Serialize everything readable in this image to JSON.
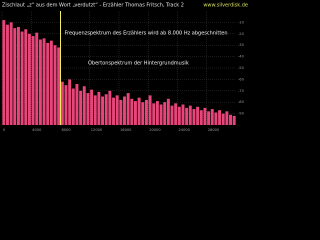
{
  "chart_data": {
    "type": "bar",
    "title": "Zischlaut „z“ aus dem Wort „verdutzt“ - Erzähler Thomas Fritsch, Track 2",
    "source": "www.silverdisk.de",
    "annotations": [
      "Frequenzspektrum des Erzählers wird ab 8.000 Hz abgeschnitten",
      "Obertonspektrum der Hintergrundmusik"
    ],
    "marker_x": 8000,
    "marker_color": "#f4f060",
    "color": "#e8457a",
    "grid": true,
    "x": [
      250,
      750,
      1250,
      1750,
      2250,
      2750,
      3250,
      3750,
      4250,
      4750,
      5250,
      5750,
      6250,
      6750,
      7250,
      7750,
      8250,
      8750,
      9250,
      9750,
      10250,
      10750,
      11250,
      11750,
      12250,
      12750,
      13250,
      13750,
      14250,
      14750,
      15250,
      15750,
      16250,
      16750,
      17250,
      17750,
      18250,
      18750,
      19250,
      19750,
      20250,
      20750,
      21250,
      21750,
      22250,
      22750,
      23250,
      23750,
      24250,
      24750,
      25250,
      25750,
      26250,
      26750,
      27250,
      27750,
      28250,
      28750,
      29250,
      29750,
      30250,
      30750,
      31250,
      31750
    ],
    "values": [
      -8,
      -12,
      -10,
      -15,
      -14,
      -18,
      -16,
      -20,
      -22,
      -19,
      -25,
      -24,
      -28,
      -26,
      -30,
      -32,
      -62,
      -65,
      -60,
      -68,
      -64,
      -70,
      -66,
      -72,
      -69,
      -74,
      -71,
      -75,
      -73,
      -70,
      -76,
      -74,
      -78,
      -75,
      -72,
      -77,
      -79,
      -76,
      -80,
      -78,
      -74,
      -81,
      -79,
      -82,
      -80,
      -77,
      -83,
      -81,
      -84,
      -82,
      -85,
      -83,
      -86,
      -84,
      -87,
      -85,
      -88,
      -86,
      -89,
      -87,
      -90,
      -88,
      -91,
      -92
    ],
    "xlim": [
      0,
      32000
    ],
    "xticks": [
      0,
      4000,
      8000,
      12000,
      16000,
      20000,
      24000,
      28000
    ],
    "ylim": [
      -100,
      0
    ],
    "yticks": [
      -10,
      -20,
      -30,
      -40,
      -50,
      -60,
      -70,
      -80,
      -90
    ]
  }
}
